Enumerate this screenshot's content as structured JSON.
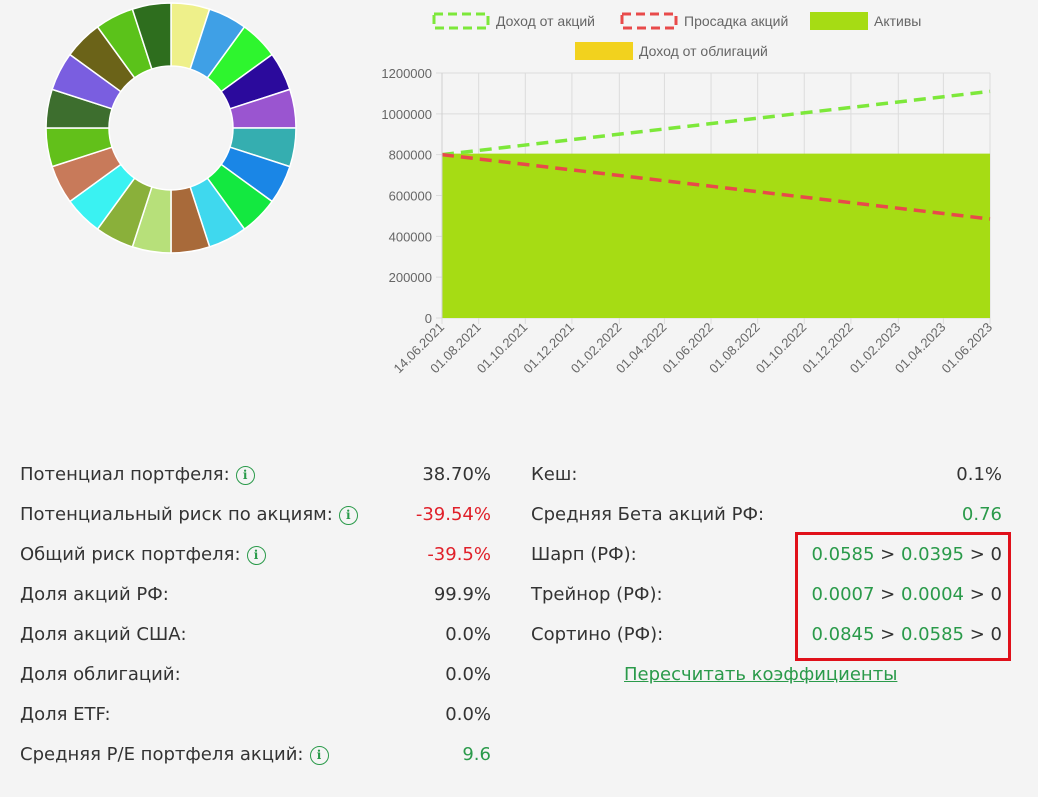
{
  "donut_colors": [
    "#eef08a",
    "#3fa0e6",
    "#2ef52e",
    "#2b0a9c",
    "#9a55d0",
    "#35aeb0",
    "#1a86e6",
    "#13e840",
    "#3fd8ee",
    "#a86a3a",
    "#b7e07a",
    "#8ab03a",
    "#3af2f2",
    "#c87a5a",
    "#62c01a",
    "#3d6e2e",
    "#7a5ee0",
    "#6b6318",
    "#5bc21a",
    "#2e6e1e"
  ],
  "chart_data": {
    "type": "area",
    "legend_position": "top",
    "legend": [
      {
        "label": "Доход от акций",
        "style": "dashed",
        "color": "#7de83a"
      },
      {
        "label": "Просадка акций",
        "style": "dashed",
        "color": "#e84a4a"
      },
      {
        "label": "Активы",
        "style": "solid",
        "color": "#a6dc14"
      },
      {
        "label": "Доход от облигаций",
        "style": "solid",
        "color": "#f2d21e"
      }
    ],
    "x_ticks": [
      "14.06.2021",
      "01.08.2021",
      "01.10.2021",
      "01.12.2021",
      "01.02.2022",
      "01.04.2022",
      "01.06.2022",
      "01.08.2022",
      "01.10.2022",
      "01.12.2022",
      "01.02.2023",
      "01.04.2023",
      "01.06.2023"
    ],
    "y_ticks": [
      "0",
      "200000",
      "400000",
      "600000",
      "800000",
      "1000000",
      "1200000"
    ],
    "ylim": [
      0,
      1200000
    ],
    "xlim": [
      "14.06.2021",
      "01.06.2023"
    ],
    "grid": true,
    "series": [
      {
        "name": "Доход от акций",
        "x": [
          "14.06.2021",
          "01.06.2023"
        ],
        "values": [
          800000,
          1110000
        ]
      },
      {
        "name": "Просадка акций",
        "x": [
          "14.06.2021",
          "01.06.2023"
        ],
        "values": [
          800000,
          485000
        ]
      },
      {
        "name": "Активы",
        "x": [
          "14.06.2021",
          "01.06.2023"
        ],
        "values": [
          805000,
          805000
        ]
      }
    ]
  },
  "left_stats": [
    {
      "label": "Потенциал портфеля:",
      "value": "38.70%",
      "info": true,
      "color": "dark"
    },
    {
      "label": "Потенциальный риск по акциям:",
      "value": "-39.54%",
      "info": true,
      "color": "red"
    },
    {
      "label": "Общий риск портфеля:",
      "value": "-39.5%",
      "info": true,
      "color": "red"
    },
    {
      "label": "Доля акций РФ:",
      "value": "99.9%",
      "info": false,
      "color": "dark"
    },
    {
      "label": "Доля акций США:",
      "value": "0.0%",
      "info": false,
      "color": "dark"
    },
    {
      "label": "Доля облигаций:",
      "value": "0.0%",
      "info": false,
      "color": "dark"
    },
    {
      "label": "Доля ETF:",
      "value": "0.0%",
      "info": false,
      "color": "dark"
    },
    {
      "label": "Средняя P/E портфеля акций:",
      "value": "9.6",
      "info": true,
      "color": "green"
    }
  ],
  "right_stats": {
    "cash": {
      "label": "Кеш:",
      "value": "0.1%"
    },
    "beta": {
      "label": "Средняя Бета акций РФ:",
      "value": "0.76"
    },
    "ratios": [
      {
        "label": "Шарп (РФ):",
        "v1": "0.0585",
        "v2": "0.0395",
        "v3": "0"
      },
      {
        "label": "Трейнор (РФ):",
        "v1": "0.0007",
        "v2": "0.0004",
        "v3": "0"
      },
      {
        "label": "Сортино (РФ):",
        "v1": "0.0845",
        "v2": "0.0585",
        "v3": "0"
      }
    ],
    "gt": ">"
  },
  "recalc_link": "Пересчитать коэффициенты",
  "info_glyph": "i"
}
